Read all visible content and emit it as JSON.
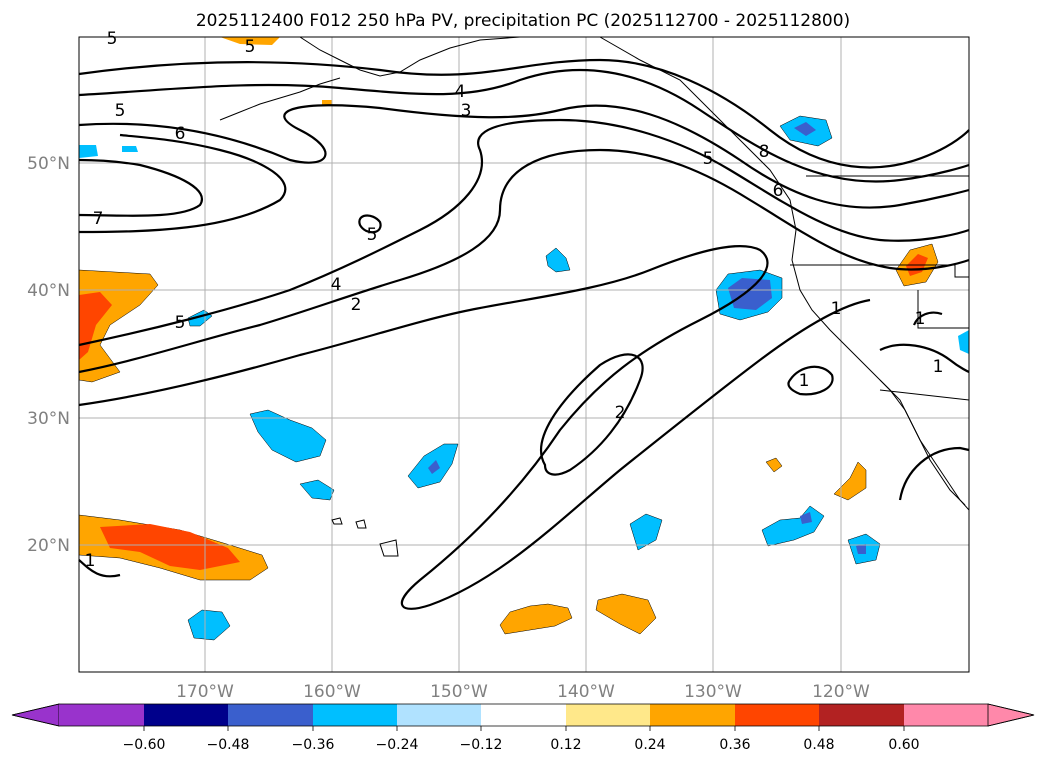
{
  "title": "2025112400 F012 250 hPa PV, precipitation PC (2025112700 - 2025112800)",
  "lat_ticks": [
    "50°N",
    "40°N",
    "30°N",
    "20°N"
  ],
  "lon_ticks": [
    "170°W",
    "160°W",
    "150°W",
    "140°W",
    "130°W",
    "120°W"
  ],
  "colorbar": {
    "ticks": [
      "−0.60",
      "−0.48",
      "−0.36",
      "−0.24",
      "−0.12",
      "0.12",
      "0.24",
      "0.36",
      "0.48",
      "0.60"
    ],
    "colors": [
      "#9933cc",
      "#00008b",
      "#3a5fcd",
      "#00bfff",
      "#b0e2ff",
      "#ffffff",
      "#ffe88a",
      "#ffa500",
      "#ff4500",
      "#b22222",
      "#ff88aa"
    ]
  },
  "contour_labels": [
    "5",
    "5",
    "5",
    "6",
    "7",
    "4",
    "3",
    "5",
    "4",
    "2",
    "5",
    "5",
    "8",
    "6",
    "2",
    "1",
    "1",
    "1",
    "1",
    "1"
  ],
  "colors": {
    "pv_contour": "#000000",
    "gridline": "#b0b0b0",
    "tick_text": "#808080"
  }
}
